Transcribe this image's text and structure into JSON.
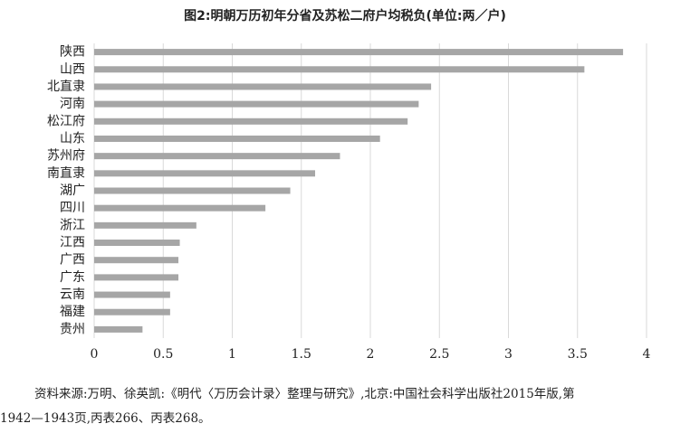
{
  "chart_data": {
    "type": "hbar",
    "title": "图2:明朝万历初年分省及苏松二府户均税负(单位:两／户)",
    "categories": [
      "陕西",
      "山西",
      "北直隶",
      "河南",
      "松江府",
      "山东",
      "苏州府",
      "南直隶",
      "湖广",
      "四川",
      "浙江",
      "江西",
      "广西",
      "广东",
      "云南",
      "福建",
      "贵州"
    ],
    "values": [
      3.83,
      3.55,
      2.44,
      2.35,
      2.27,
      2.07,
      1.78,
      1.6,
      1.42,
      1.24,
      0.74,
      0.62,
      0.61,
      0.61,
      0.55,
      0.55,
      0.35
    ],
    "color": "#a6a6a6",
    "xlim": [
      0,
      4
    ],
    "xticks": [
      0,
      0.5,
      1,
      1.5,
      2,
      2.5,
      3,
      3.5,
      4
    ],
    "grid": true
  },
  "source": [
    "资料来源:万明、徐英凯:《明代〈万历会计录〉整理与研究》,北京:中国社会科学出版社2015年版,第",
    "1942—1943页,丙表266、丙表268。"
  ]
}
